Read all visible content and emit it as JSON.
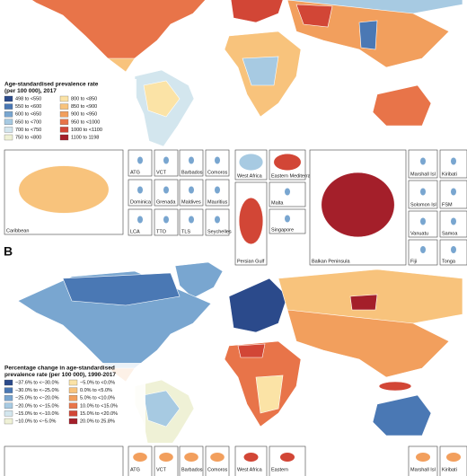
{
  "panel_a": {
    "legend": {
      "title": [
        "Age-standardised prevalence rate",
        "(per 100 000), 2017"
      ],
      "items": [
        {
          "label": "498 to <550",
          "color": "#2b4a8b"
        },
        {
          "label": "550 to <600",
          "color": "#4a78b4"
        },
        {
          "label": "600 to <650",
          "color": "#79a6d0"
        },
        {
          "label": "650 to <700",
          "color": "#a7cae2"
        },
        {
          "label": "700 to <750",
          "color": "#d3e6ee"
        },
        {
          "label": "750 to <800",
          "color": "#eff1d6"
        },
        {
          "label": "800 to <850",
          "color": "#fbe3a6"
        },
        {
          "label": "850 to <900",
          "color": "#f8c37c"
        },
        {
          "label": "900 to <950",
          "color": "#f29f5d"
        },
        {
          "label": "950 to <1000",
          "color": "#e87449"
        },
        {
          "label": "1000 to <1100",
          "color": "#d24636"
        },
        {
          "label": "1100 to 1198",
          "color": "#a41f2a"
        }
      ]
    },
    "insets": [
      "Caribbean",
      "ATG",
      "VCT",
      "Barbados",
      "Comoros",
      "Dominica",
      "Grenada",
      "Maldives",
      "Mauritius",
      "LCA",
      "TTO",
      "TLS",
      "Seychelles",
      "West Africa",
      "Eastern Mediterranean",
      "Malta",
      "Persian Gulf",
      "Singapore",
      "Balkan Peninsula",
      "Marshall Isl",
      "Kiribati",
      "Solomon Isl",
      "FSM",
      "Vanuatu",
      "Samoa",
      "Fiji",
      "Tonga"
    ]
  },
  "panel_b": {
    "label": "B",
    "legend": {
      "title": [
        "Percentage change in age-standardised",
        "prevalence rate (per 100 000), 1990-2017"
      ],
      "items": [
        {
          "label": "−37.6% to <−30.0%",
          "color": "#2b4a8b"
        },
        {
          "label": "−30.0% to <−25.0%",
          "color": "#4a78b4"
        },
        {
          "label": "−25.0% to <−20.0%",
          "color": "#79a6d0"
        },
        {
          "label": "−20.0% to <−15.0%",
          "color": "#a7cae2"
        },
        {
          "label": "−15.0% to <−10.0%",
          "color": "#d3e6ee"
        },
        {
          "label": "−10.0% to <−5.0%",
          "color": "#eff1d6"
        },
        {
          "label": "−5.0% to <0.0%",
          "color": "#fbe3a6"
        },
        {
          "label": "0.0% to <5.0%",
          "color": "#f8c37c"
        },
        {
          "label": "5.0% to <10.0%",
          "color": "#f29f5d"
        },
        {
          "label": "10.0% to <15.0%",
          "color": "#e87449"
        },
        {
          "label": "15.0% to <20.0%",
          "color": "#d24636"
        },
        {
          "label": "20.0% to 25.8%",
          "color": "#a41f2a"
        }
      ]
    },
    "insets": [
      "ATG",
      "VCT",
      "Barbados",
      "Comoros",
      "West Africa",
      "Eastern",
      "Marshall Isl",
      "Kiribati"
    ]
  }
}
